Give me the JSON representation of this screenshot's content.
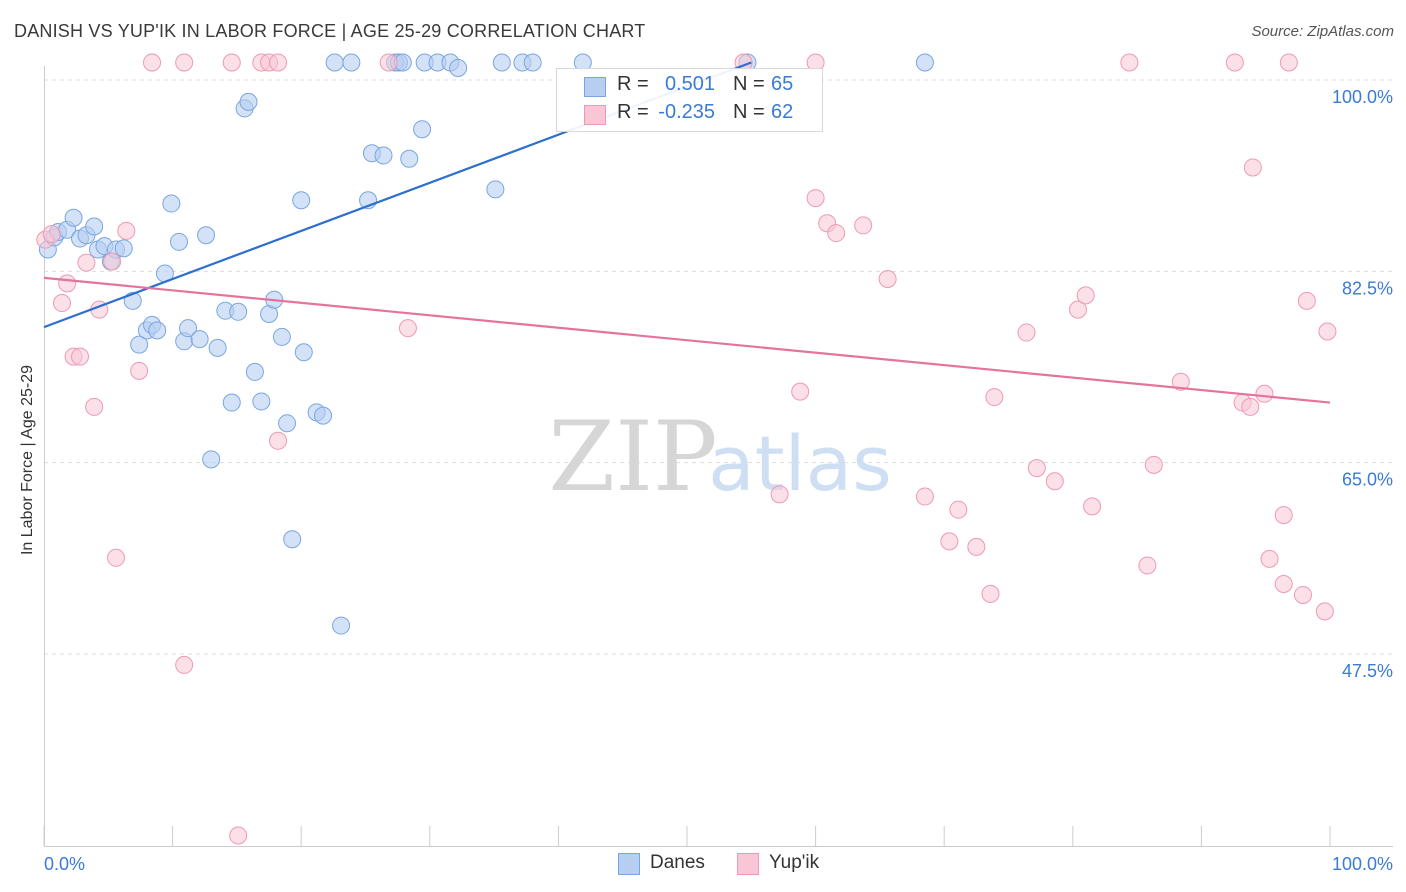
{
  "header": {
    "title": "DANISH VS YUP'IK IN LABOR FORCE | AGE 25-29 CORRELATION CHART",
    "source": "Source: ZipAtlas.com"
  },
  "watermark": {
    "zip": "ZIP",
    "atlas": "atlas"
  },
  "stats": {
    "r_label": "R =",
    "n_label": "N =",
    "danes": {
      "r": "0.501",
      "n": "65"
    },
    "yupik": {
      "r": "-0.235",
      "n": "62"
    }
  },
  "legend": {
    "danes": "Danes",
    "yupik": "Yup'ik"
  },
  "colors": {
    "danes_fill": "#b6cff1",
    "danes_stroke": "#7aa6e0",
    "danes_line": "#2d6fce",
    "yupik_fill": "#f8c6d5",
    "yupik_stroke": "#ee9ab4",
    "yupik_line": "#e4749c",
    "tick_label": "#3a7bd5",
    "grid": "#dddddd"
  },
  "chart_data": {
    "type": "scatter",
    "title": "DANISH VS YUP'IK IN LABOR FORCE | AGE 25-29 CORRELATION CHART",
    "xlabel": "",
    "ylabel": "In Labor Force | Age 25-29",
    "xlim": [
      0,
      100
    ],
    "ylim": [
      30,
      101.7
    ],
    "x_tick_labels": [
      "0.0%",
      "100.0%"
    ],
    "y_ticks": [
      100,
      82.5,
      65,
      47.5
    ],
    "y_tick_labels": [
      "100.0%",
      "82.5%",
      "65.0%",
      "47.5%"
    ],
    "grid": true,
    "legend_position": "bottom-center",
    "series": [
      {
        "name": "Danes",
        "r": 0.501,
        "n": 65,
        "trend": {
          "x": [
            0,
            55
          ],
          "y": [
            77.4,
            101.6
          ]
        },
        "points": [
          [
            0.3,
            84.5
          ],
          [
            0.8,
            85.6
          ],
          [
            1.1,
            86.1
          ],
          [
            1.8,
            86.3
          ],
          [
            2.3,
            87.4
          ],
          [
            2.8,
            85.5
          ],
          [
            3.3,
            85.8
          ],
          [
            3.9,
            86.6
          ],
          [
            4.2,
            84.5
          ],
          [
            4.7,
            84.8
          ],
          [
            5.2,
            83.4
          ],
          [
            5.6,
            84.5
          ],
          [
            6.2,
            84.6
          ],
          [
            6.9,
            79.8
          ],
          [
            7.4,
            75.8
          ],
          [
            8.0,
            77.1
          ],
          [
            8.4,
            77.6
          ],
          [
            8.8,
            77.1
          ],
          [
            9.4,
            82.3
          ],
          [
            9.9,
            88.7
          ],
          [
            10.5,
            85.2
          ],
          [
            10.9,
            76.1
          ],
          [
            11.2,
            77.3
          ],
          [
            12.1,
            76.3
          ],
          [
            12.6,
            85.8
          ],
          [
            13.0,
            65.3
          ],
          [
            13.5,
            75.5
          ],
          [
            14.1,
            78.9
          ],
          [
            14.6,
            70.5
          ],
          [
            15.1,
            78.8
          ],
          [
            15.6,
            97.4
          ],
          [
            15.9,
            98.0
          ],
          [
            16.4,
            73.3
          ],
          [
            16.9,
            70.6
          ],
          [
            17.5,
            78.6
          ],
          [
            17.9,
            79.9
          ],
          [
            18.5,
            76.5
          ],
          [
            18.9,
            68.6
          ],
          [
            19.3,
            58.0
          ],
          [
            20.0,
            89.0
          ],
          [
            20.2,
            75.1
          ],
          [
            21.2,
            69.6
          ],
          [
            21.7,
            69.3
          ],
          [
            22.6,
            101.6
          ],
          [
            23.1,
            50.1
          ],
          [
            23.9,
            101.6
          ],
          [
            25.2,
            89.0
          ],
          [
            25.5,
            93.3
          ],
          [
            26.4,
            93.1
          ],
          [
            27.3,
            101.6
          ],
          [
            27.6,
            101.6
          ],
          [
            27.9,
            101.6
          ],
          [
            28.4,
            92.8
          ],
          [
            29.4,
            95.5
          ],
          [
            29.6,
            101.6
          ],
          [
            30.6,
            101.6
          ],
          [
            31.6,
            101.6
          ],
          [
            32.2,
            101.1
          ],
          [
            35.1,
            90.0
          ],
          [
            35.6,
            101.6
          ],
          [
            37.2,
            101.6
          ],
          [
            38.0,
            101.6
          ],
          [
            41.9,
            101.6
          ],
          [
            54.7,
            101.6
          ],
          [
            68.5,
            101.6
          ]
        ]
      },
      {
        "name": "Yup'ik",
        "r": -0.235,
        "n": 62,
        "trend": {
          "x": [
            0,
            100
          ],
          "y": [
            81.9,
            70.5
          ]
        },
        "points": [
          [
            0.1,
            85.4
          ],
          [
            0.6,
            85.9
          ],
          [
            1.4,
            79.6
          ],
          [
            1.8,
            81.4
          ],
          [
            2.3,
            74.7
          ],
          [
            2.8,
            74.7
          ],
          [
            3.3,
            83.3
          ],
          [
            3.9,
            70.1
          ],
          [
            4.3,
            79.0
          ],
          [
            5.3,
            83.4
          ],
          [
            5.6,
            56.3
          ],
          [
            6.4,
            86.2
          ],
          [
            7.4,
            73.4
          ],
          [
            8.4,
            101.6
          ],
          [
            10.9,
            101.6
          ],
          [
            10.9,
            46.5
          ],
          [
            14.6,
            101.6
          ],
          [
            15.1,
            30.9
          ],
          [
            16.9,
            101.6
          ],
          [
            17.5,
            101.6
          ],
          [
            18.2,
            101.6
          ],
          [
            18.2,
            67.0
          ],
          [
            26.8,
            101.6
          ],
          [
            28.3,
            77.3
          ],
          [
            54.4,
            101.6
          ],
          [
            57.2,
            62.1
          ],
          [
            58.8,
            71.5
          ],
          [
            60.0,
            101.6
          ],
          [
            60.0,
            89.2
          ],
          [
            60.9,
            86.9
          ],
          [
            61.6,
            86.0
          ],
          [
            63.7,
            86.7
          ],
          [
            65.6,
            81.8
          ],
          [
            68.5,
            61.9
          ],
          [
            70.4,
            57.8
          ],
          [
            71.1,
            60.7
          ],
          [
            72.5,
            57.3
          ],
          [
            73.6,
            53.0
          ],
          [
            73.9,
            71.0
          ],
          [
            76.4,
            76.9
          ],
          [
            77.2,
            64.5
          ],
          [
            78.6,
            63.3
          ],
          [
            80.4,
            79.0
          ],
          [
            81.0,
            80.3
          ],
          [
            81.5,
            61.0
          ],
          [
            84.4,
            101.6
          ],
          [
            85.8,
            55.6
          ],
          [
            86.3,
            64.8
          ],
          [
            88.4,
            72.4
          ],
          [
            92.6,
            101.6
          ],
          [
            93.2,
            70.5
          ],
          [
            93.8,
            70.1
          ],
          [
            94.0,
            92.0
          ],
          [
            94.9,
            71.3
          ],
          [
            95.3,
            56.2
          ],
          [
            96.8,
            101.6
          ],
          [
            96.4,
            53.9
          ],
          [
            96.4,
            60.2
          ],
          [
            97.9,
            52.9
          ],
          [
            98.2,
            79.8
          ],
          [
            99.6,
            51.4
          ],
          [
            99.8,
            77.0
          ]
        ]
      }
    ]
  }
}
